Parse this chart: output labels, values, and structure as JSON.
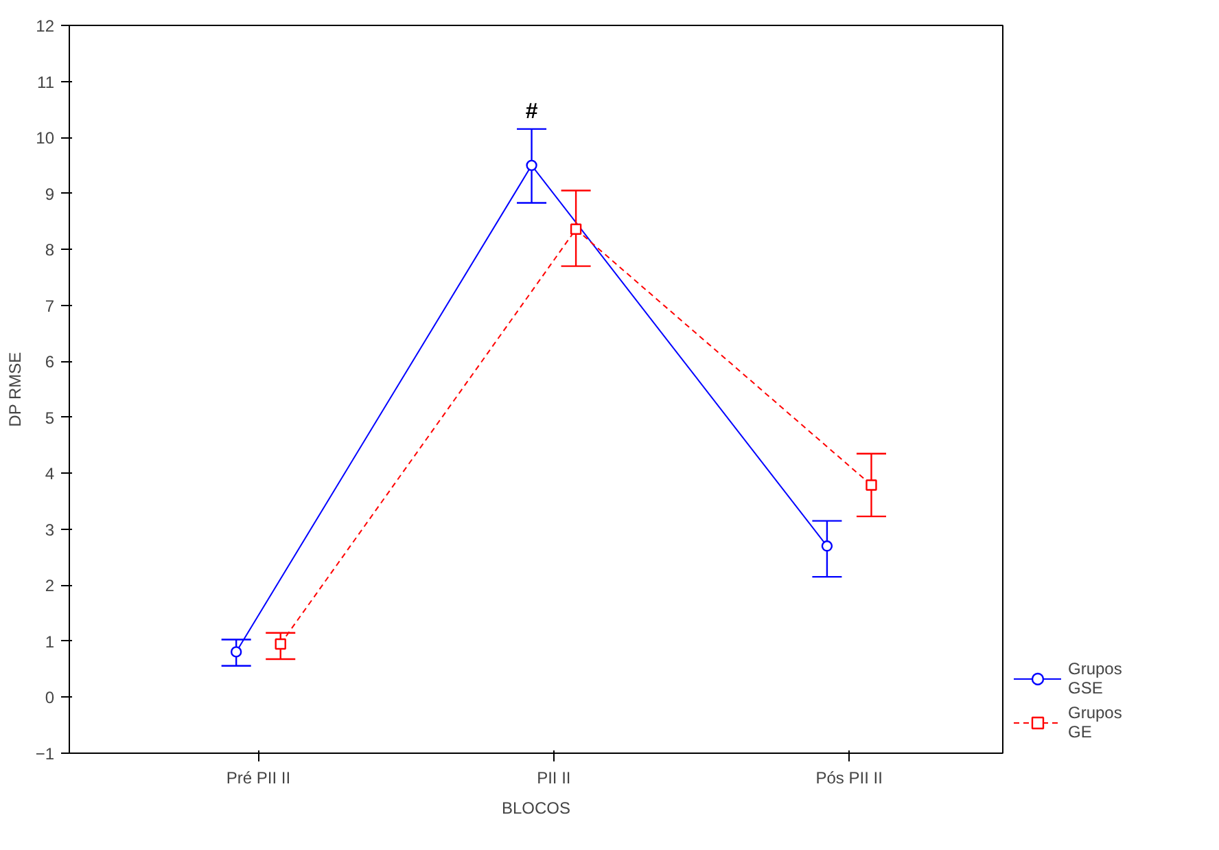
{
  "chart_data": {
    "type": "line",
    "xlabel": "BLOCOS",
    "ylabel": "DP RMSE",
    "categories": [
      "Pré PII II",
      "PII II",
      "Pós PII II"
    ],
    "ylim": [
      -1,
      12
    ],
    "yticks": [
      -1,
      0,
      1,
      2,
      3,
      4,
      5,
      6,
      7,
      8,
      9,
      10,
      11,
      12
    ],
    "grid": false,
    "legend": "right",
    "series": [
      {
        "name": "Grupos GSE",
        "color": "#0000ff",
        "values": [
          0.81,
          9.5,
          2.7
        ],
        "errors": [
          [
            0.56,
            1.03
          ],
          [
            8.83,
            10.15
          ],
          [
            2.15,
            3.15
          ]
        ],
        "marker": "circle",
        "line_style": "solid"
      },
      {
        "name": "Grupos GE",
        "color": "#ff0000",
        "values": [
          0.95,
          8.36,
          3.79
        ],
        "errors": [
          [
            0.68,
            1.15
          ],
          [
            7.7,
            9.05
          ],
          [
            3.23,
            4.35
          ]
        ],
        "marker": "square",
        "line_style": "dashed"
      }
    ],
    "annotations": [
      "#"
    ]
  }
}
